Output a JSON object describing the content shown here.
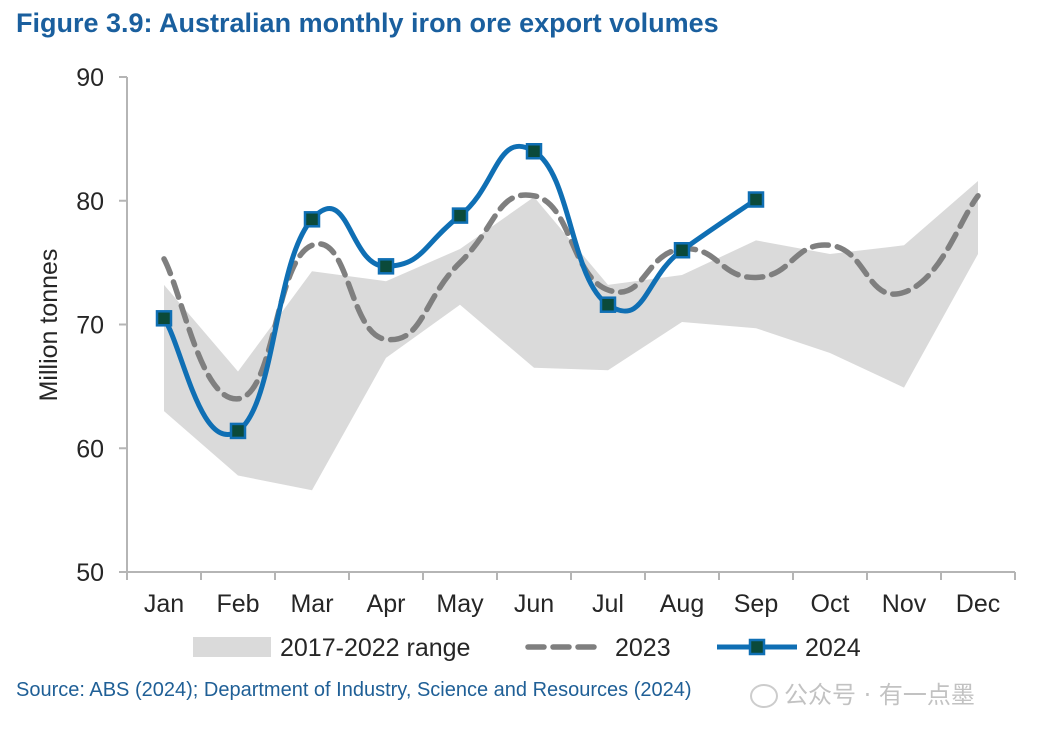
{
  "title": "Figure 3.9: Australian monthly iron ore export volumes",
  "source": "Source: ABS (2024); Department of Industry, Science and Resources (2024)",
  "watermark": {
    "text": "公众号 · 有一点墨",
    "icon": "wechat-icon"
  },
  "colors": {
    "title": "#1a5f9e",
    "range": "#dadada",
    "s2023": "#7f7f7f",
    "s2024": "#0f6fb4",
    "marker": "#0b4a3a"
  },
  "chart_data": {
    "type": "line",
    "title": "Figure 3.9: Australian monthly iron ore export volumes",
    "xlabel": "",
    "ylabel": "Million tonnes",
    "ylim": [
      50,
      90
    ],
    "yticks": [
      50,
      60,
      70,
      80,
      90
    ],
    "grid": false,
    "legend_position": "bottom",
    "categories": [
      "Jan",
      "Feb",
      "Mar",
      "Apr",
      "May",
      "Jun",
      "Jul",
      "Aug",
      "Sep",
      "Oct",
      "Nov",
      "Dec"
    ],
    "range": {
      "name": "2017-2022 range",
      "low": [
        63.0,
        57.8,
        56.6,
        67.3,
        71.6,
        66.5,
        66.3,
        70.2,
        69.7,
        67.7,
        64.9,
        75.7
      ],
      "high": [
        73.2,
        66.2,
        74.3,
        73.5,
        76.1,
        80.3,
        73.2,
        74.0,
        76.8,
        75.7,
        76.4,
        81.6
      ]
    },
    "series": [
      {
        "name": "2023",
        "style": "dashed",
        "values": [
          75.3,
          64.0,
          76.4,
          68.8,
          75.0,
          80.4,
          72.8,
          76.1,
          73.8,
          76.4,
          72.6,
          80.4
        ]
      },
      {
        "name": "2024",
        "style": "solid-marker",
        "values": [
          70.5,
          61.4,
          78.5,
          74.7,
          78.8,
          84.0,
          71.6,
          76.0,
          80.1,
          null,
          null,
          null
        ]
      }
    ]
  }
}
